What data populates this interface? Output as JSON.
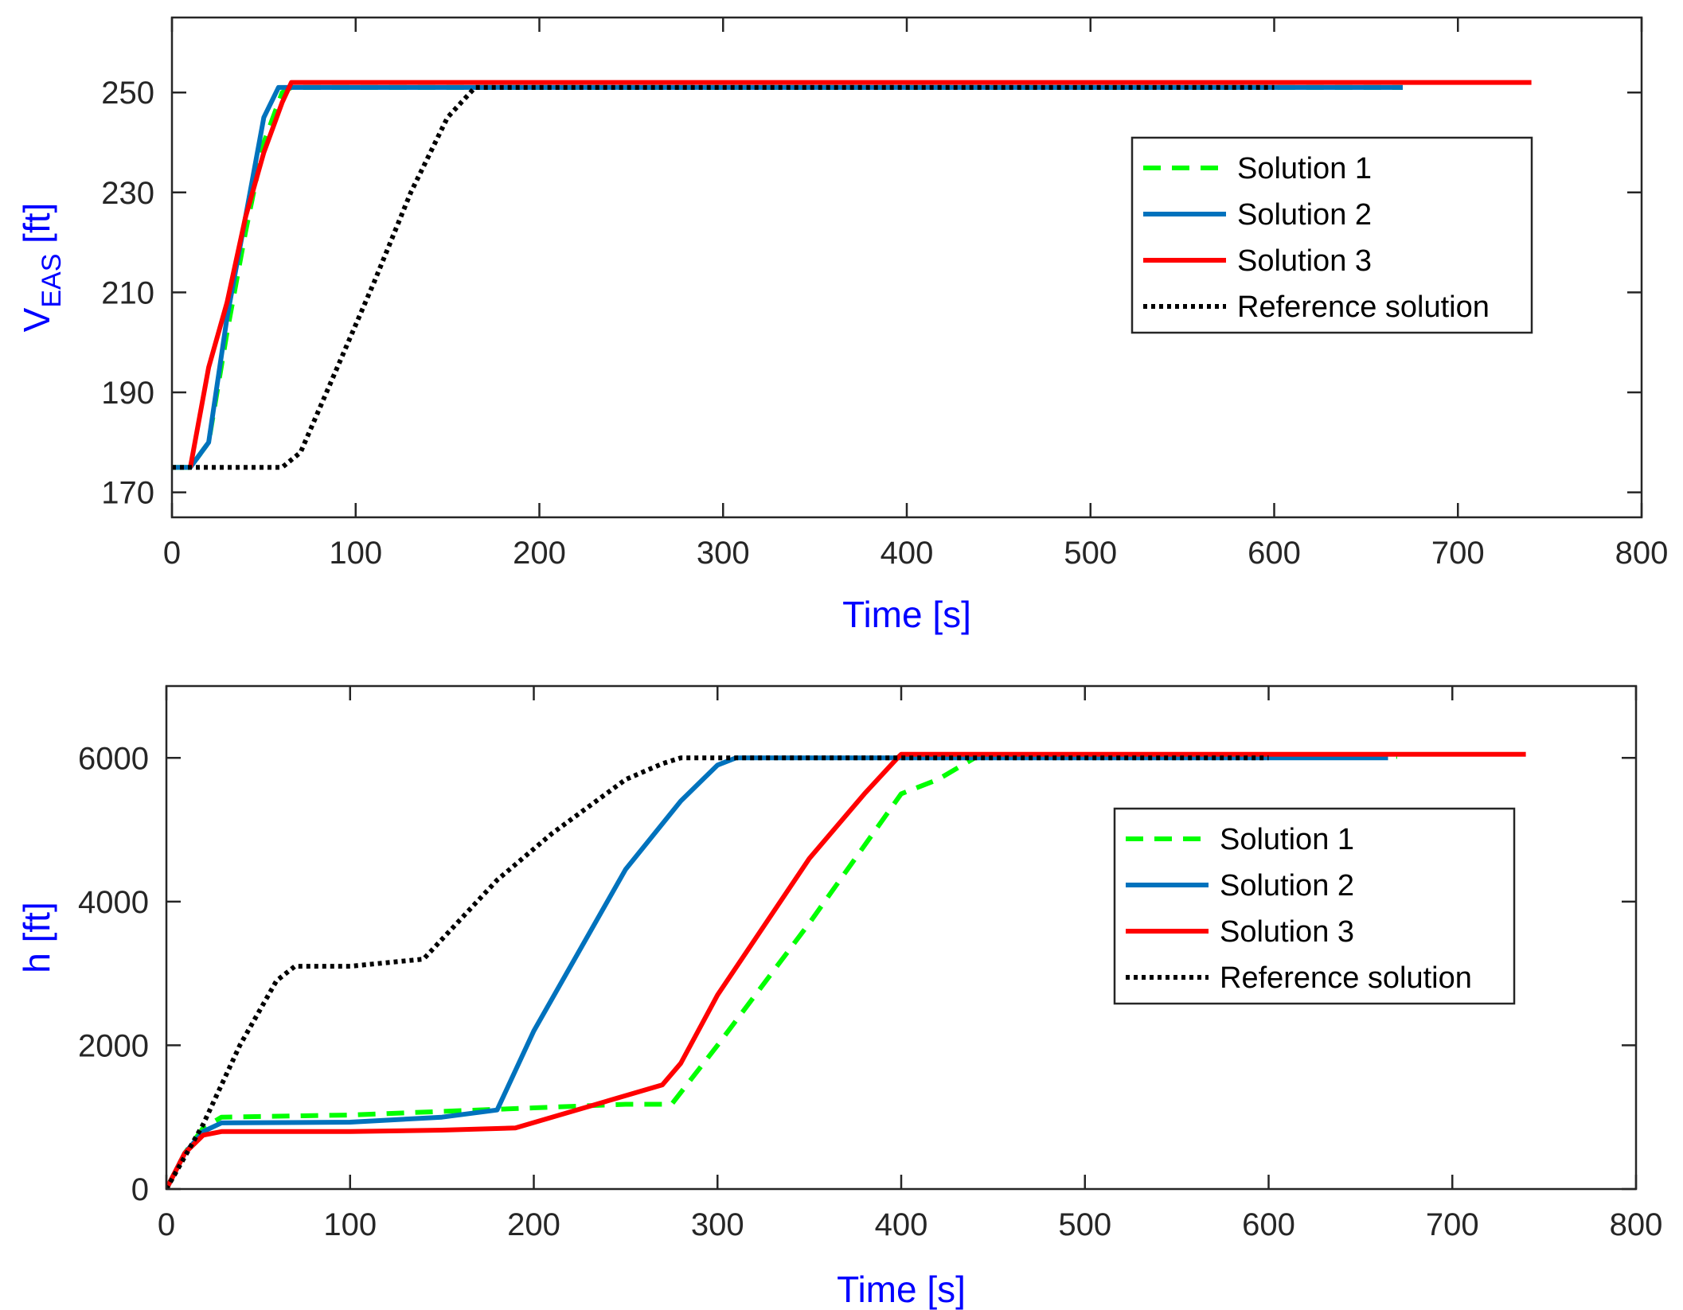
{
  "chart_data": [
    {
      "type": "line",
      "xlabel": "Time [s]",
      "ylabel_main": "V",
      "ylabel_sub": "EAS",
      "ylabel_unit": " [ft]",
      "xlim": [
        0,
        800
      ],
      "ylim": [
        165,
        265
      ],
      "xticks": [
        0,
        100,
        200,
        300,
        400,
        500,
        600,
        700,
        800
      ],
      "yticks": [
        170,
        190,
        210,
        230,
        250
      ],
      "grid": false,
      "legend_position": "top-right",
      "series": [
        {
          "name": "Solution 1",
          "color": "#00ff00",
          "style": "dashed",
          "x": [
            0,
            5,
            10,
            20,
            30,
            40,
            50,
            60,
            65,
            670
          ],
          "y": [
            175,
            175,
            175,
            180,
            202,
            222,
            240,
            250,
            251,
            251
          ]
        },
        {
          "name": "Solution 2",
          "color": "#0072bd",
          "style": "solid",
          "x": [
            0,
            10,
            20,
            30,
            40,
            50,
            58,
            60,
            670
          ],
          "y": [
            175,
            175,
            180,
            205,
            225,
            245,
            251,
            251,
            251
          ]
        },
        {
          "name": "Solution 3",
          "color": "#ff0000",
          "style": "solid",
          "x": [
            10,
            20,
            30,
            40,
            50,
            60,
            65,
            740
          ],
          "y": [
            175,
            195,
            208,
            225,
            238,
            248,
            252,
            252
          ]
        },
        {
          "name": "Reference solution",
          "color": "#000000",
          "style": "dotted",
          "x": [
            0,
            60,
            70,
            90,
            110,
            130,
            150,
            165,
            600
          ],
          "y": [
            175,
            175,
            178,
            195,
            212,
            230,
            245,
            251,
            251
          ]
        }
      ]
    },
    {
      "type": "line",
      "xlabel": "Time [s]",
      "ylabel_main": "h [ft]",
      "ylabel_sub": "",
      "ylabel_unit": "",
      "xlim": [
        0,
        800
      ],
      "ylim": [
        0,
        7000
      ],
      "xticks": [
        0,
        100,
        200,
        300,
        400,
        500,
        600,
        700,
        800
      ],
      "yticks": [
        0,
        2000,
        4000,
        6000
      ],
      "grid": false,
      "legend_position": "right",
      "series": [
        {
          "name": "Solution 1",
          "color": "#00ff00",
          "style": "dashed",
          "x": [
            0,
            10,
            20,
            30,
            100,
            150,
            200,
            250,
            275,
            300,
            350,
            400,
            420,
            440,
            460,
            670
          ],
          "y": [
            0,
            500,
            850,
            1000,
            1030,
            1080,
            1130,
            1180,
            1180,
            2000,
            3700,
            5500,
            5700,
            6000,
            6020,
            6020
          ]
        },
        {
          "name": "Solution 2",
          "color": "#0072bd",
          "style": "solid",
          "x": [
            0,
            10,
            20,
            30,
            100,
            150,
            180,
            200,
            250,
            280,
            300,
            310,
            665
          ],
          "y": [
            0,
            500,
            800,
            920,
            930,
            1000,
            1100,
            2200,
            4450,
            5400,
            5900,
            6000,
            6000
          ]
        },
        {
          "name": "Solution 3",
          "color": "#ff0000",
          "style": "solid",
          "x": [
            0,
            10,
            20,
            30,
            100,
            150,
            190,
            230,
            270,
            280,
            300,
            350,
            380,
            398,
            400,
            740
          ],
          "y": [
            0,
            500,
            750,
            800,
            800,
            820,
            850,
            1150,
            1450,
            1750,
            2700,
            4600,
            5500,
            6000,
            6050,
            6050
          ]
        },
        {
          "name": "Reference solution",
          "color": "#000000",
          "style": "dotted",
          "x": [
            0,
            20,
            40,
            60,
            70,
            100,
            140,
            180,
            210,
            250,
            270,
            280,
            600
          ],
          "y": [
            0,
            900,
            2000,
            2900,
            3100,
            3100,
            3200,
            4300,
            4950,
            5700,
            5920,
            6000,
            6000
          ]
        }
      ]
    }
  ]
}
